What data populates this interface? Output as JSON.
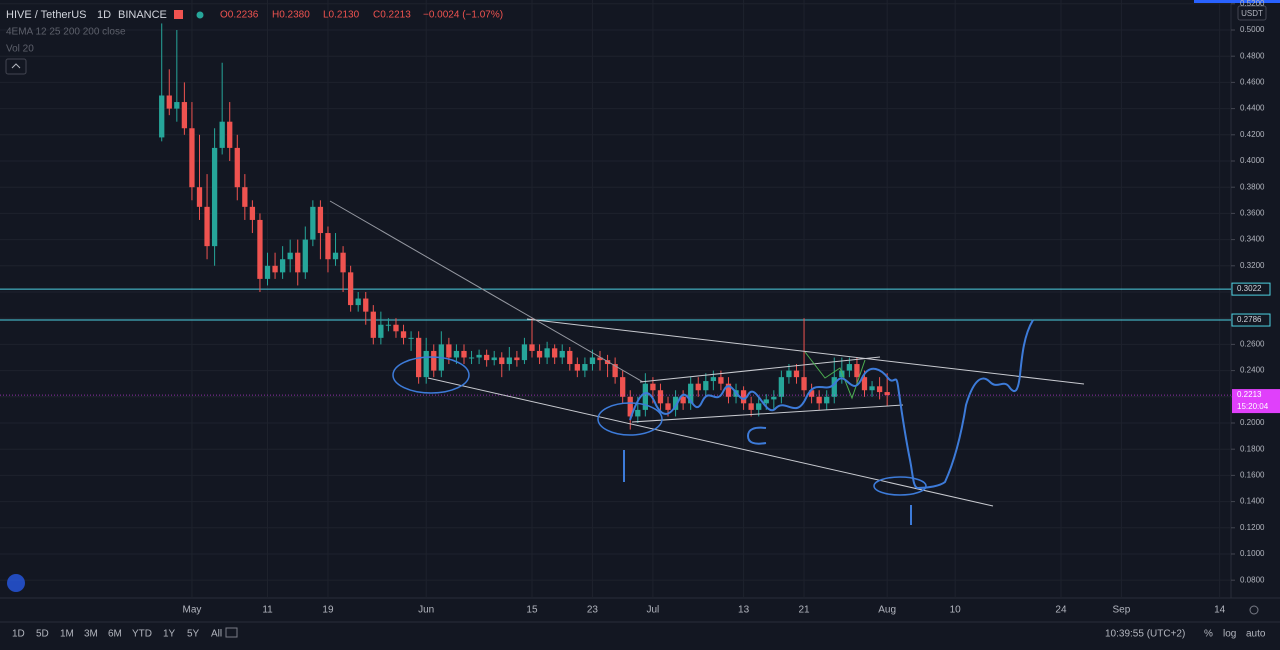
{
  "header": {
    "symbol": "HIVE / TetherUS",
    "interval": "1D",
    "exchange": "BINANCE",
    "open": "O0.2236",
    "high": "H0.2380",
    "low": "L0.2130",
    "close": "C0.2213",
    "change": "−0.0024 (−1.07%)",
    "indicator": "4EMA 12 25 200 200 close",
    "volume": "Vol 20"
  },
  "axis_currency": "USDT",
  "toolbar": {
    "ranges": [
      "1D",
      "5D",
      "1M",
      "3M",
      "6M",
      "YTD",
      "1Y",
      "5Y",
      "All"
    ],
    "clock": "10:39:55 (UTC+2)",
    "percent": "%",
    "log": "log",
    "auto": "auto"
  },
  "chart_data": {
    "type": "candlestick",
    "up_color": "#26a69a",
    "down_color": "#ef5350",
    "x": [
      -4,
      -3,
      -2,
      -1,
      0,
      1,
      2,
      3,
      4,
      5,
      6,
      7,
      8,
      9,
      10,
      11,
      12,
      13,
      14,
      15,
      16,
      17,
      18,
      19,
      20,
      21,
      22,
      23,
      24,
      25,
      26,
      27,
      28,
      29,
      30,
      31,
      32,
      33,
      34,
      35,
      36,
      37,
      38,
      39,
      40,
      41,
      42,
      43,
      44,
      45,
      46,
      47,
      48,
      49,
      50,
      51,
      52,
      53,
      54,
      55,
      56,
      57,
      58,
      59,
      60,
      61,
      62,
      63,
      64,
      65,
      66,
      67,
      68,
      69,
      70,
      71,
      72,
      73,
      74,
      75,
      76,
      77,
      78,
      79,
      80,
      81,
      82,
      83,
      84,
      85,
      86,
      87,
      88,
      89,
      90,
      91,
      92
    ],
    "open": [
      0.418,
      0.45,
      0.44,
      0.445,
      0.425,
      0.38,
      0.365,
      0.335,
      0.41,
      0.43,
      0.41,
      0.38,
      0.365,
      0.355,
      0.31,
      0.32,
      0.315,
      0.325,
      0.33,
      0.315,
      0.34,
      0.365,
      0.345,
      0.325,
      0.33,
      0.315,
      0.29,
      0.295,
      0.285,
      0.265,
      0.275,
      0.275,
      0.27,
      0.265,
      0.265,
      0.235,
      0.255,
      0.24,
      0.26,
      0.25,
      0.255,
      0.25,
      0.25,
      0.252,
      0.248,
      0.25,
      0.245,
      0.25,
      0.248,
      0.26,
      0.255,
      0.25,
      0.257,
      0.25,
      0.255,
      0.245,
      0.24,
      0.245,
      0.25,
      0.248,
      0.245,
      0.235,
      0.22,
      0.205,
      0.21,
      0.23,
      0.225,
      0.215,
      0.21,
      0.22,
      0.215,
      0.23,
      0.225,
      0.232,
      0.235,
      0.23,
      0.22,
      0.225,
      0.215,
      0.21,
      0.215,
      0.218,
      0.22,
      0.235,
      0.24,
      0.235,
      0.225,
      0.22,
      0.215,
      0.22,
      0.235,
      0.24,
      0.245,
      0.235,
      0.225,
      0.228,
      0.2236
    ],
    "high": [
      0.505,
      0.47,
      0.5,
      0.46,
      0.445,
      0.42,
      0.39,
      0.425,
      0.475,
      0.445,
      0.42,
      0.39,
      0.37,
      0.36,
      0.33,
      0.33,
      0.335,
      0.34,
      0.34,
      0.35,
      0.37,
      0.37,
      0.35,
      0.345,
      0.335,
      0.32,
      0.3,
      0.3,
      0.29,
      0.285,
      0.28,
      0.28,
      0.275,
      0.27,
      0.27,
      0.265,
      0.26,
      0.27,
      0.265,
      0.26,
      0.26,
      0.255,
      0.256,
      0.256,
      0.255,
      0.254,
      0.258,
      0.255,
      0.265,
      0.28,
      0.26,
      0.262,
      0.26,
      0.26,
      0.258,
      0.25,
      0.25,
      0.256,
      0.255,
      0.252,
      0.25,
      0.24,
      0.225,
      0.22,
      0.238,
      0.235,
      0.23,
      0.22,
      0.225,
      0.225,
      0.235,
      0.235,
      0.238,
      0.24,
      0.24,
      0.235,
      0.23,
      0.228,
      0.22,
      0.22,
      0.222,
      0.225,
      0.24,
      0.245,
      0.245,
      0.28,
      0.23,
      0.225,
      0.225,
      0.25,
      0.25,
      0.25,
      0.25,
      0.24,
      0.232,
      0.235,
      0.238
    ],
    "low": [
      0.415,
      0.435,
      0.43,
      0.42,
      0.37,
      0.355,
      0.325,
      0.32,
      0.405,
      0.4,
      0.37,
      0.355,
      0.345,
      0.3,
      0.305,
      0.31,
      0.31,
      0.315,
      0.305,
      0.31,
      0.335,
      0.325,
      0.315,
      0.32,
      0.3,
      0.285,
      0.285,
      0.275,
      0.26,
      0.26,
      0.27,
      0.265,
      0.26,
      0.255,
      0.23,
      0.23,
      0.235,
      0.235,
      0.245,
      0.245,
      0.245,
      0.245,
      0.245,
      0.243,
      0.244,
      0.235,
      0.24,
      0.243,
      0.245,
      0.25,
      0.245,
      0.245,
      0.245,
      0.245,
      0.24,
      0.235,
      0.235,
      0.24,
      0.24,
      0.235,
      0.23,
      0.215,
      0.195,
      0.2,
      0.205,
      0.215,
      0.21,
      0.205,
      0.205,
      0.21,
      0.21,
      0.22,
      0.22,
      0.225,
      0.225,
      0.215,
      0.215,
      0.21,
      0.205,
      0.205,
      0.21,
      0.21,
      0.215,
      0.23,
      0.23,
      0.22,
      0.215,
      0.21,
      0.21,
      0.215,
      0.23,
      0.235,
      0.23,
      0.22,
      0.22,
      0.218,
      0.213
    ],
    "close": [
      0.45,
      0.44,
      0.445,
      0.425,
      0.38,
      0.365,
      0.335,
      0.41,
      0.43,
      0.41,
      0.38,
      0.365,
      0.355,
      0.31,
      0.32,
      0.315,
      0.325,
      0.33,
      0.315,
      0.34,
      0.365,
      0.345,
      0.325,
      0.33,
      0.315,
      0.29,
      0.295,
      0.285,
      0.265,
      0.275,
      0.275,
      0.27,
      0.265,
      0.265,
      0.235,
      0.255,
      0.24,
      0.26,
      0.25,
      0.255,
      0.25,
      0.25,
      0.252,
      0.248,
      0.25,
      0.245,
      0.25,
      0.248,
      0.26,
      0.255,
      0.25,
      0.257,
      0.25,
      0.255,
      0.245,
      0.24,
      0.245,
      0.25,
      0.248,
      0.245,
      0.235,
      0.22,
      0.205,
      0.21,
      0.23,
      0.225,
      0.215,
      0.21,
      0.22,
      0.215,
      0.23,
      0.225,
      0.232,
      0.235,
      0.23,
      0.22,
      0.225,
      0.215,
      0.21,
      0.215,
      0.218,
      0.22,
      0.235,
      0.24,
      0.235,
      0.225,
      0.22,
      0.215,
      0.22,
      0.235,
      0.24,
      0.245,
      0.235,
      0.225,
      0.228,
      0.2236,
      0.2213
    ],
    "xlim": [
      -25.4,
      137.5
    ],
    "ylim": [
      0.0664,
      0.5229
    ],
    "xticks": [
      {
        "value": 0,
        "label": "May"
      },
      {
        "value": 10,
        "label": "11"
      },
      {
        "value": 18,
        "label": "19"
      },
      {
        "value": 31,
        "label": "Jun"
      },
      {
        "value": 45,
        "label": "15"
      },
      {
        "value": 53,
        "label": "23"
      },
      {
        "value": 61,
        "label": "Jul"
      },
      {
        "value": 73,
        "label": "13"
      },
      {
        "value": 81,
        "label": "21"
      },
      {
        "value": 92,
        "label": "Aug"
      },
      {
        "value": 101,
        "label": "10"
      },
      {
        "value": 115,
        "label": "24"
      },
      {
        "value": 123,
        "label": "Sep"
      },
      {
        "value": 136,
        "label": "14"
      }
    ],
    "yticks": [
      {
        "value": 0.08,
        "label": "0.0800"
      },
      {
        "value": 0.1,
        "label": "0.1000"
      },
      {
        "value": 0.12,
        "label": "0.1200"
      },
      {
        "value": 0.14,
        "label": "0.1400"
      },
      {
        "value": 0.16,
        "label": "0.1600"
      },
      {
        "value": 0.18,
        "label": "0.1800"
      },
      {
        "value": 0.2,
        "label": "0.2000"
      },
      {
        "value": 0.22,
        "label": "0.2200"
      },
      {
        "value": 0.24,
        "label": "0.2400"
      },
      {
        "value": 0.26,
        "label": "0.2600"
      },
      {
        "value": 0.28,
        "label": "0.2800"
      },
      {
        "value": 0.3,
        "label": "0.3000"
      },
      {
        "value": 0.32,
        "label": "0.3200"
      },
      {
        "value": 0.34,
        "label": "0.3400"
      },
      {
        "value": 0.36,
        "label": "0.3600"
      },
      {
        "value": 0.38,
        "label": "0.3800"
      },
      {
        "value": 0.4,
        "label": "0.4000"
      },
      {
        "value": 0.42,
        "label": "0.4200"
      },
      {
        "value": 0.44,
        "label": "0.4400"
      },
      {
        "value": 0.46,
        "label": "0.4600"
      },
      {
        "value": 0.48,
        "label": "0.4800"
      },
      {
        "value": 0.5,
        "label": "0.5000"
      },
      {
        "value": 0.52,
        "label": "0.5200"
      }
    ],
    "price_lines": [
      0.3022,
      0.2786
    ],
    "price_line_color": "#4dd0e1",
    "last_price": 0.2213,
    "last_color": "#e040fb",
    "countdown": "15:20:04"
  }
}
